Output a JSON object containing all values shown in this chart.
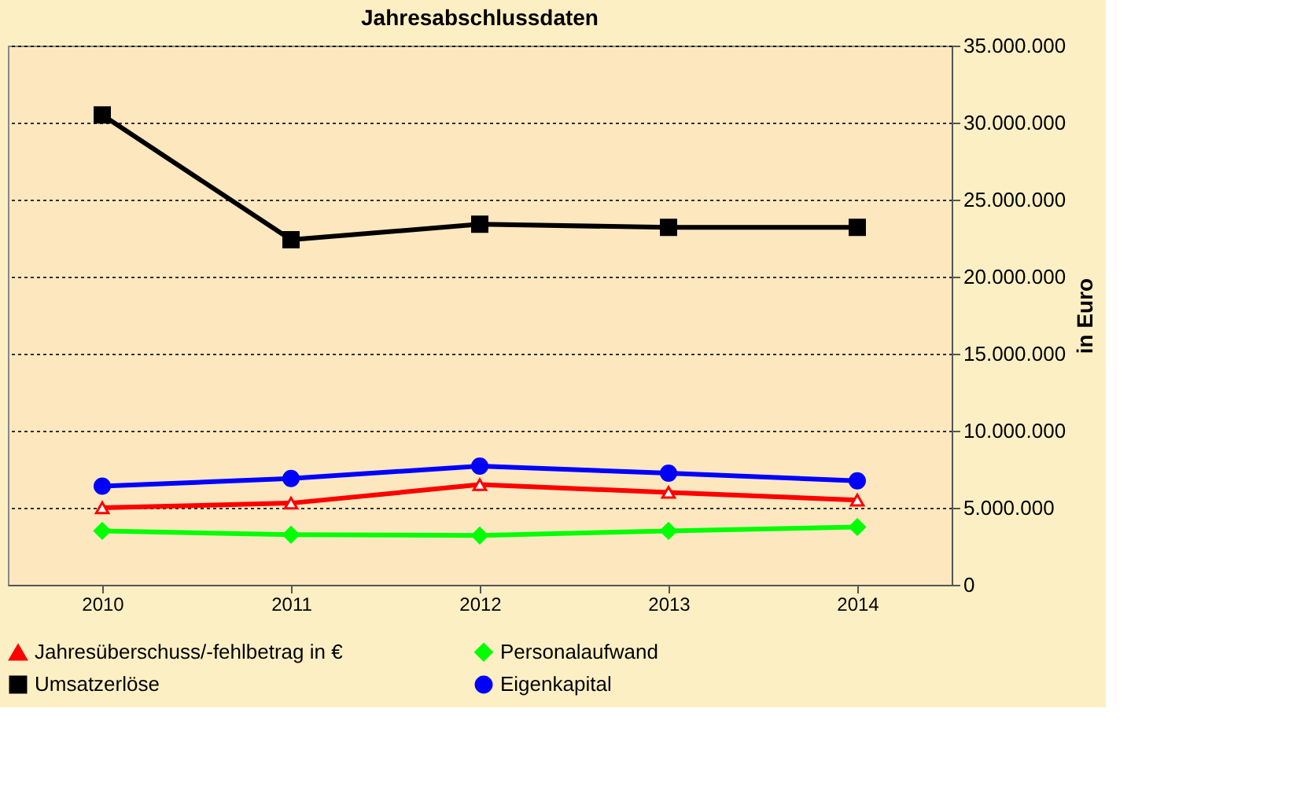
{
  "chart_data": {
    "type": "line",
    "title": "Jahresabschlussdaten",
    "ylabel": "in Euro",
    "categories": [
      "2010",
      "2011",
      "2012",
      "2013",
      "2014"
    ],
    "series": [
      {
        "name": "Jahresüberschuss/-fehlbetrag in €",
        "color": "#ff0000",
        "marker": "triangle",
        "values": [
          5000000,
          5300000,
          6500000,
          6000000,
          5500000
        ]
      },
      {
        "name": "Personalaufwand",
        "color": "#00ff00",
        "marker": "diamond",
        "values": [
          3500000,
          3250000,
          3200000,
          3500000,
          3750000
        ]
      },
      {
        "name": "Umsatzerlöse",
        "color": "#000000",
        "marker": "square",
        "values": [
          30500000,
          22400000,
          23400000,
          23200000,
          23200000
        ]
      },
      {
        "name": "Eigenkapital",
        "color": "#0000ff",
        "marker": "circle",
        "values": [
          6400000,
          6900000,
          7700000,
          7250000,
          6750000
        ]
      }
    ],
    "ylim": [
      0,
      35000000
    ],
    "yticks": [
      0,
      {
        "value": 5000000,
        "label": "5.000.000"
      },
      {
        "value": 10000000,
        "label": "10.000.000"
      },
      {
        "value": 15000000,
        "label": "15.000.000"
      },
      {
        "value": 20000000,
        "label": "20.000.000"
      },
      {
        "value": 25000000,
        "label": "25.000.000"
      },
      {
        "value": 30000000,
        "label": "30.000.000"
      },
      {
        "value": 35000000,
        "label": "35.000.000"
      }
    ],
    "grid": "y",
    "legend": "bottom",
    "line_style": "solid"
  }
}
